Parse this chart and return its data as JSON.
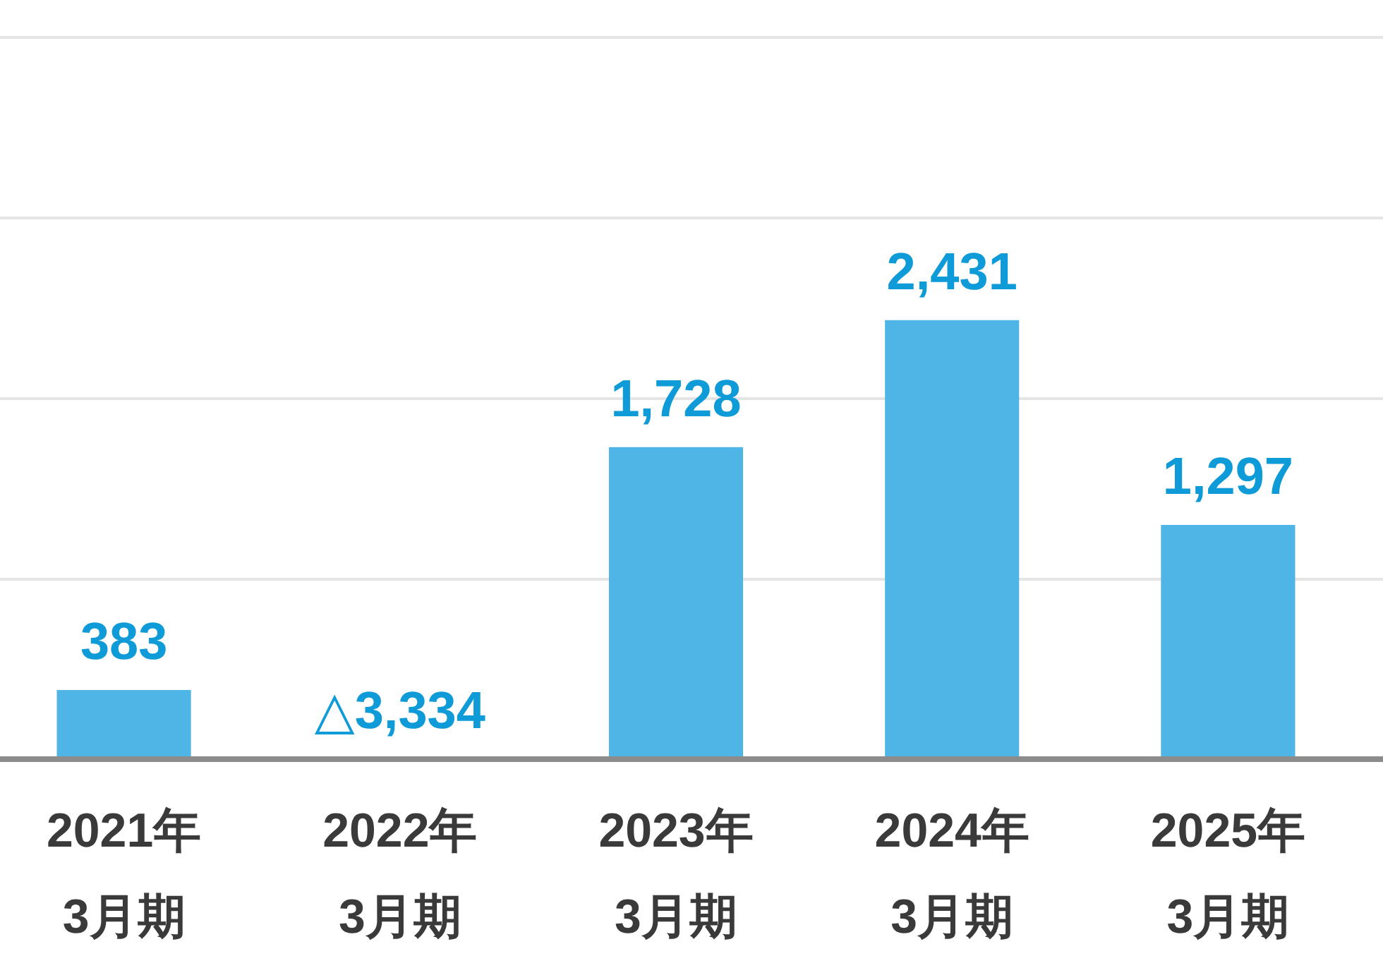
{
  "chart_data": {
    "type": "bar",
    "categories": [
      "2021年\n3月期",
      "2022年\n3月期",
      "2023年\n3月期",
      "2024年\n3月期",
      "2025年\n3月期"
    ],
    "values": [
      383,
      null,
      1728,
      2431,
      1297
    ],
    "value_labels": [
      "383",
      "△3,334",
      "1,728",
      "2,431",
      "1,297"
    ],
    "color": "#4fb5e7",
    "ylim": [
      0,
      4000
    ],
    "yticks": [
      {
        "value": 0,
        "label": null
      },
      {
        "value": 1000,
        "label": null
      },
      {
        "value": 2000,
        "label": null
      },
      {
        "value": 3000,
        "label": null
      },
      {
        "value": 4000,
        "label": null
      }
    ],
    "grid": "y",
    "tick_labels": "x"
  }
}
